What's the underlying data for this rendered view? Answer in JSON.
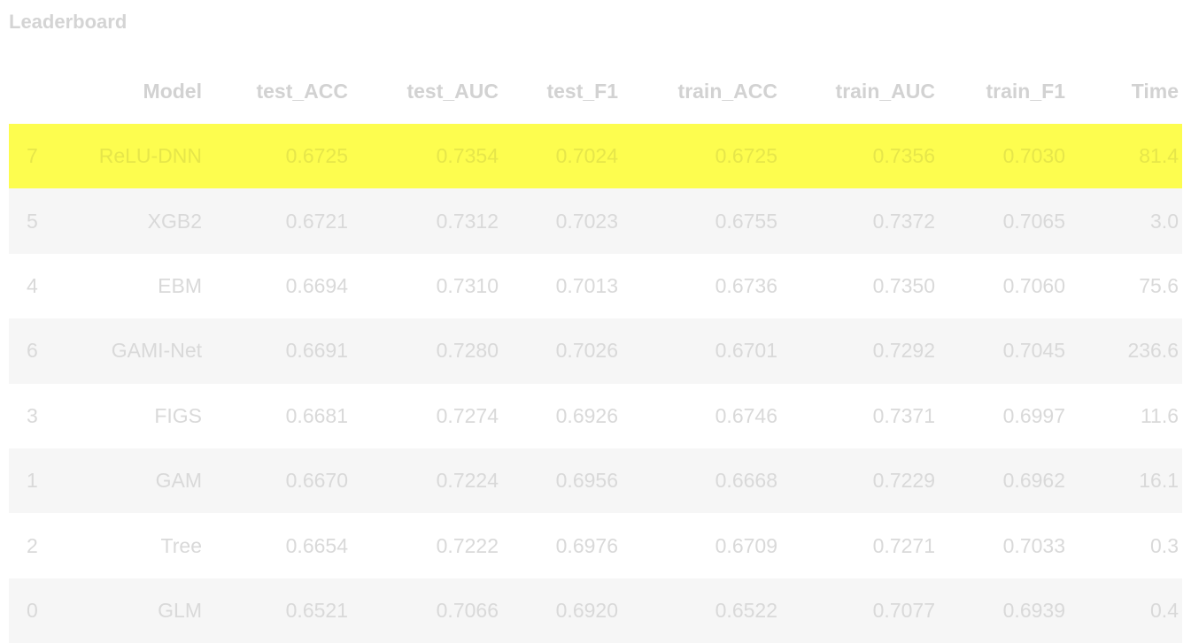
{
  "title": "Leaderboard",
  "columns": [
    "",
    "Model",
    "test_ACC",
    "test_AUC",
    "test_F1",
    "train_ACC",
    "train_AUC",
    "train_F1",
    "Time"
  ],
  "highlight_color": "#fdfd4f",
  "rows": [
    {
      "idx": "7",
      "model": "ReLU-DNN",
      "test_ACC": "0.6725",
      "test_AUC": "0.7354",
      "test_F1": "0.7024",
      "train_ACC": "0.6725",
      "train_AUC": "0.7356",
      "train_F1": "0.7030",
      "time": "81.4",
      "highlighted": true
    },
    {
      "idx": "5",
      "model": "XGB2",
      "test_ACC": "0.6721",
      "test_AUC": "0.7312",
      "test_F1": "0.7023",
      "train_ACC": "0.6755",
      "train_AUC": "0.7372",
      "train_F1": "0.7065",
      "time": "3.0",
      "highlighted": false
    },
    {
      "idx": "4",
      "model": "EBM",
      "test_ACC": "0.6694",
      "test_AUC": "0.7310",
      "test_F1": "0.7013",
      "train_ACC": "0.6736",
      "train_AUC": "0.7350",
      "train_F1": "0.7060",
      "time": "75.6",
      "highlighted": false
    },
    {
      "idx": "6",
      "model": "GAMI-Net",
      "test_ACC": "0.6691",
      "test_AUC": "0.7280",
      "test_F1": "0.7026",
      "train_ACC": "0.6701",
      "train_AUC": "0.7292",
      "train_F1": "0.7045",
      "time": "236.6",
      "highlighted": false
    },
    {
      "idx": "3",
      "model": "FIGS",
      "test_ACC": "0.6681",
      "test_AUC": "0.7274",
      "test_F1": "0.6926",
      "train_ACC": "0.6746",
      "train_AUC": "0.7371",
      "train_F1": "0.6997",
      "time": "11.6",
      "highlighted": false
    },
    {
      "idx": "1",
      "model": "GAM",
      "test_ACC": "0.6670",
      "test_AUC": "0.7224",
      "test_F1": "0.6956",
      "train_ACC": "0.6668",
      "train_AUC": "0.7229",
      "train_F1": "0.6962",
      "time": "16.1",
      "highlighted": false
    },
    {
      "idx": "2",
      "model": "Tree",
      "test_ACC": "0.6654",
      "test_AUC": "0.7222",
      "test_F1": "0.6976",
      "train_ACC": "0.6709",
      "train_AUC": "0.7271",
      "train_F1": "0.7033",
      "time": "0.3",
      "highlighted": false
    },
    {
      "idx": "0",
      "model": "GLM",
      "test_ACC": "0.6521",
      "test_AUC": "0.7066",
      "test_F1": "0.6920",
      "train_ACC": "0.6522",
      "train_AUC": "0.7077",
      "train_F1": "0.6939",
      "time": "0.4",
      "highlighted": false
    }
  ]
}
